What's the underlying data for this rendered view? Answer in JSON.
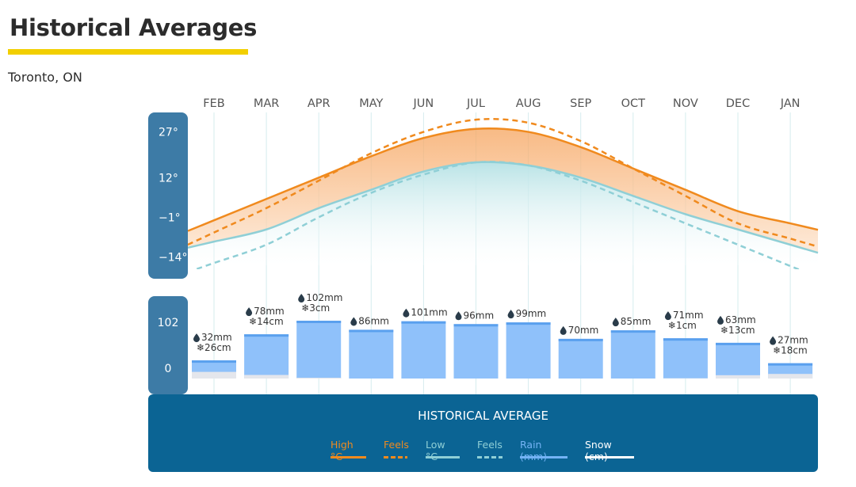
{
  "header": {
    "title": "Historical Averages",
    "location": "Toronto, ON",
    "accent_color": "#f2cf00"
  },
  "footer": {
    "title": "HISTORICAL AVERAGE",
    "background": "#0b6494"
  },
  "legend": [
    {
      "label": "High °C",
      "color": "#f08a1e",
      "style": "solid"
    },
    {
      "label": "Feels",
      "color": "#f08a1e",
      "style": "dashed"
    },
    {
      "label": "Low °C",
      "color": "#8fcfd6",
      "style": "solid"
    },
    {
      "label": "Feels",
      "color": "#8fcfd6",
      "style": "dashed"
    },
    {
      "label": "Rain (mm)",
      "color": "#74b3f5",
      "style": "solid"
    },
    {
      "label": "Snow (cm)",
      "color": "#ffffff",
      "style": "solid"
    }
  ],
  "chart_data": {
    "type": "line",
    "categories": [
      "FEB",
      "MAR",
      "APR",
      "MAY",
      "JUN",
      "JUL",
      "AUG",
      "SEP",
      "OCT",
      "NOV",
      "DEC",
      "JAN"
    ],
    "temperature_axis": {
      "ticks": [
        "27°",
        "12°",
        "−1°",
        "−14°"
      ],
      "tick_values": [
        27,
        12,
        -1,
        -14
      ]
    },
    "series": [
      {
        "name": "High °C",
        "values": [
          -2,
          5,
          12,
          19,
          25,
          28,
          27,
          22,
          15,
          8,
          1,
          -3
        ]
      },
      {
        "name": "Feels",
        "values": [
          -6,
          2,
          11,
          20,
          27,
          31,
          30,
          24,
          15,
          6,
          -3,
          -8
        ]
      },
      {
        "name": "Low °C",
        "values": [
          -9,
          -5,
          2,
          8,
          14,
          17,
          16,
          12,
          6,
          0,
          -5,
          -10
        ]
      },
      {
        "name": "Feels",
        "values": [
          -16,
          -10,
          -1,
          7,
          13,
          17,
          16,
          11,
          4,
          -3,
          -10,
          -17
        ]
      }
    ],
    "precip_axis": {
      "ticks": [
        "102",
        "0"
      ],
      "tick_values": [
        102,
        0
      ]
    },
    "precipitation": {
      "rain_mm": [
        32,
        78,
        102,
        86,
        101,
        96,
        99,
        70,
        85,
        71,
        63,
        27
      ],
      "snow_cm": [
        26,
        14,
        3,
        0,
        0,
        0,
        0,
        0,
        0,
        1,
        13,
        18
      ],
      "rain_labels": [
        "32mm",
        "78mm",
        "102mm",
        "86mm",
        "101mm",
        "96mm",
        "99mm",
        "70mm",
        "85mm",
        "71mm",
        "63mm",
        "27mm"
      ],
      "snow_labels": [
        "26cm",
        "14cm",
        "3cm",
        "",
        "",
        "",
        "",
        "",
        "",
        "1cm",
        "13cm",
        "18cm"
      ]
    },
    "colors": {
      "high": "#f08a1e",
      "low": "#8fcfd6",
      "axis_panel": "#3d7ba6",
      "rain_bar": "#8fc1fa",
      "rain_top": "#5aa0ee",
      "snow_bar": "#e4e6ec",
      "month_label": "#555555",
      "grid": "#d6ecee"
    }
  }
}
